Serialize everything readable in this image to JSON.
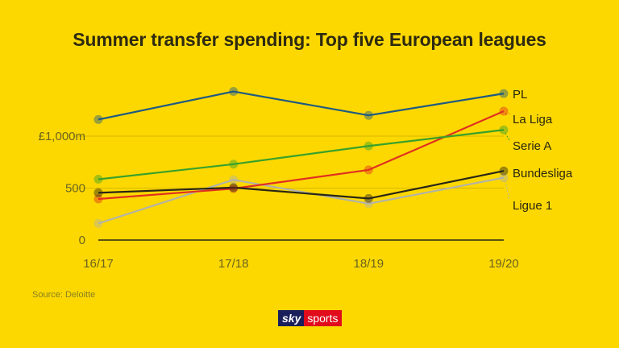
{
  "chart_data": {
    "type": "line",
    "title": "Summer transfer spending: Top five European leagues",
    "categories": [
      "16/17",
      "17/18",
      "18/19",
      "19/20"
    ],
    "ylim": [
      0,
      1500
    ],
    "yticks": [
      {
        "value": 0,
        "label": "0"
      },
      {
        "value": 500,
        "label": "500"
      },
      {
        "value": 1000,
        "label": "£1,000m"
      }
    ],
    "xlabel": "",
    "ylabel": "",
    "series": [
      {
        "name": "Ligue 1",
        "color": "#b3b3a8",
        "values": [
          160,
          580,
          350,
          600
        ]
      },
      {
        "name": "La Liga",
        "color": "#e03020",
        "values": [
          395,
          495,
          675,
          1240
        ]
      },
      {
        "name": "Serie A",
        "color": "#3aa12a",
        "values": [
          585,
          730,
          905,
          1060
        ]
      },
      {
        "name": "Bundesliga",
        "color": "#2a2616",
        "values": [
          455,
          505,
          400,
          665
        ]
      },
      {
        "name": "PL",
        "color": "#1f5a82",
        "values": [
          1160,
          1430,
          1200,
          1410
        ]
      }
    ]
  },
  "source": "Source: Deloitte",
  "logo": {
    "sky": "sky",
    "sports": "sports"
  }
}
